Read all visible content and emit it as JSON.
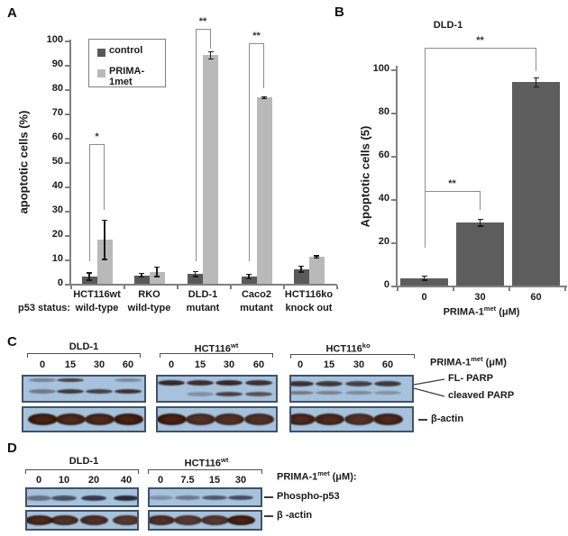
{
  "panels": {
    "a": "A",
    "b": "B",
    "c": "C",
    "d": "D"
  },
  "chart_data": [
    {
      "panel": "A",
      "type": "bar",
      "ylabel": "apoptotic cells (%)",
      "ylim": [
        0,
        100
      ],
      "ytick_step": 10,
      "grid": false,
      "legend_position": "top-left",
      "categories": [
        "HCT116wt",
        "RKO",
        "DLD-1",
        "Caco2",
        "HCT116ko"
      ],
      "x_prefix": "p53 status:",
      "p53_status": [
        "wild-type",
        "wild-type",
        "mutant",
        "mutant",
        "knock out"
      ],
      "series": [
        {
          "name": "control",
          "color": "#595959",
          "values": [
            3,
            3.5,
            4,
            3,
            6
          ],
          "errors": [
            1.5,
            0.7,
            1,
            1,
            1.2
          ]
        },
        {
          "name": "PRIMA-1met",
          "color": "#b9b9b9",
          "values": [
            18,
            5,
            94,
            76.5,
            11
          ],
          "errors": [
            8,
            2,
            1.5,
            0.5,
            0.5
          ]
        }
      ],
      "significance": [
        {
          "group": 0,
          "label": "*",
          "top": 57.5,
          "left_end": 9.3,
          "right_end": 30.5
        },
        {
          "group": 2,
          "label": "**",
          "top": 105,
          "left_end": 9.3,
          "right_end": 96.5
        },
        {
          "group": 3,
          "label": "**",
          "top": 99,
          "left_end": 9.3,
          "right_end": 80.5
        }
      ]
    },
    {
      "panel": "B",
      "type": "bar",
      "title": "DLD-1",
      "ylabel": "Apoptotic cells (5)",
      "xlabel": "PRIMA-1met (μM)",
      "xlabel_parts": {
        "pre": "PRIMA-1",
        "sup": "met",
        "post": " (μM)"
      },
      "ylim": [
        0,
        100
      ],
      "ytick_step": 20,
      "grid": false,
      "categories": [
        "0",
        "30",
        "60"
      ],
      "values": [
        3.5,
        29,
        94
      ],
      "errors": [
        1,
        1.5,
        2
      ],
      "bar_color": "#5d5d5d",
      "significance": [
        {
          "from": 0,
          "to": 2,
          "label": "**",
          "top": 110,
          "left_end": 17.5,
          "right_end": 99
        },
        {
          "from": 0,
          "to": 1,
          "label": "**",
          "top": 43.8,
          "left_end": 17.5,
          "right_end": 35
        }
      ]
    }
  ],
  "panelC": {
    "groups": [
      {
        "title": {
          "base": "DLD-1",
          "sup": ""
        },
        "doses": [
          "0",
          "15",
          "30",
          "60"
        ]
      },
      {
        "title": {
          "base": "HCT116",
          "sup": "wt"
        },
        "doses": [
          "0",
          "15",
          "30",
          "60"
        ]
      },
      {
        "title": {
          "base": "HCT116",
          "sup": "ko"
        },
        "doses": [
          "0",
          "15",
          "30",
          "60"
        ]
      }
    ],
    "labels": {
      "dose_parts": {
        "pre": "PRIMA-1",
        "sup": "met",
        "post": " (μM)"
      },
      "fl_parp": "FL- PARP",
      "cleaved_parp": "cleaved PARP",
      "beta_actin": "β-actin"
    },
    "blots": [
      {
        "parp_rows": [
          {
            "y": 0.2,
            "h": 4,
            "vals": [
              0.4,
              0.8,
              0,
              0.35
            ]
          },
          {
            "y": 0.6,
            "h": 5,
            "vals": [
              0.45,
              0.85,
              0.8,
              0.9
            ]
          }
        ],
        "actin": [
          1,
          0.95,
          0.95,
          1
        ]
      },
      {
        "parp_rows": [
          {
            "y": 0.3,
            "h": 6,
            "vals": [
              0.95,
              0.9,
              0.95,
              0.9
            ]
          },
          {
            "y": 0.68,
            "h": 5,
            "vals": [
              0,
              0.3,
              0.8,
              0.7
            ]
          }
        ],
        "actin": [
          1,
          0.9,
          0.9,
          0.9
        ]
      },
      {
        "parp_rows": [
          {
            "y": 0.33,
            "h": 6,
            "vals": [
              0.9,
              0.85,
              0.8,
              0.85
            ]
          },
          {
            "y": 0.64,
            "h": 4,
            "vals": [
              0.45,
              0.4,
              0.35,
              0.3
            ]
          }
        ],
        "actin": [
          0.95,
          0.95,
          0.9,
          0.95
        ]
      }
    ]
  },
  "panelD": {
    "groups": [
      {
        "title": {
          "base": "DLD-1",
          "sup": ""
        },
        "doses": [
          "0",
          "10",
          "20",
          "40"
        ]
      },
      {
        "title": {
          "base": "HCT116",
          "sup": "wt"
        },
        "doses": [
          "0",
          "7.5",
          "15",
          "30"
        ]
      }
    ],
    "labels": {
      "dose_parts": {
        "pre": "PRIMA-1",
        "sup": "met",
        "post": " (μM):"
      },
      "phospho": "Phospho-p53",
      "beta_actin": "β -actin"
    },
    "blots": [
      {
        "phospho": {
          "y": 0.55,
          "h": 6,
          "vals": [
            0.5,
            0.7,
            0.85,
            0.95
          ]
        },
        "actin": [
          0.95,
          0.9,
          0.9,
          0.85
        ]
      },
      {
        "phospho": {
          "y": 0.5,
          "h": 5,
          "vals": [
            0.3,
            0.45,
            0.65,
            0.75
          ]
        },
        "actin": [
          0.9,
          0.85,
          0.85,
          1
        ]
      }
    ]
  },
  "colors": {
    "axis": "#808080",
    "bracket": "#8c8c8c",
    "error_bar": "#1a1a1a",
    "group_bracket": "#4d4d4d",
    "blot_bg": "#a6c2dd",
    "blot_border": "#41516a",
    "parp_band": "#31201d",
    "phospho_band": "#232030",
    "actin_outer": "#4a2113",
    "actin_inner": "#2b1206",
    "connector": "#3d3d3d"
  }
}
